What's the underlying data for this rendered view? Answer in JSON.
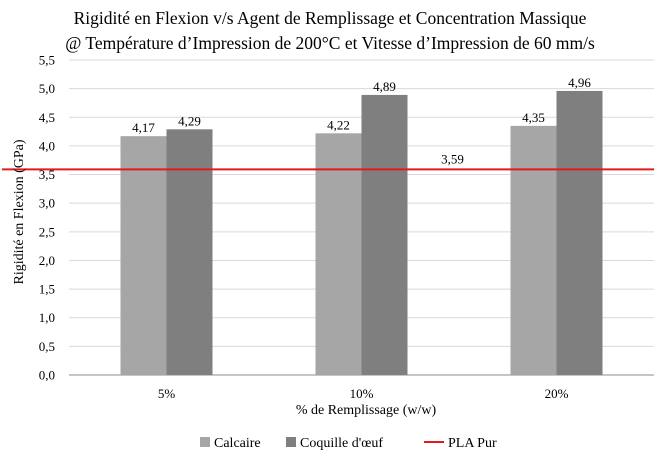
{
  "chart_data": {
    "type": "bar",
    "title_lines": [
      "Rigidité en Flexion v/s Agent de Remplissage et Concentration Massique",
      "@ Température d’Impression de 200°C et Vitesse d’Impression de 60 mm/s"
    ],
    "xlabel": "% de Remplissage (w/w)",
    "ylabel": "Rigidité en Flexion (GPa)",
    "categories": [
      "5%",
      "10%",
      "20%"
    ],
    "ylim": [
      0,
      5.5
    ],
    "ytick_step": 0.5,
    "ytick_labels": [
      "0,0",
      "0,5",
      "1,0",
      "1,5",
      "2,0",
      "2,5",
      "3,0",
      "3,5",
      "4,0",
      "4,5",
      "5,0",
      "5,5"
    ],
    "grid": true,
    "series": [
      {
        "name": "Calcaire",
        "color": "#a6a6a6",
        "values": [
          4.17,
          4.22,
          4.35
        ],
        "labels": [
          "4,17",
          "4,22",
          "4,35"
        ]
      },
      {
        "name": "Coquille d'œuf",
        "color": "#7f7f7f",
        "values": [
          4.29,
          4.89,
          4.96
        ],
        "labels": [
          "4,29",
          "4,89",
          "4,96"
        ]
      }
    ],
    "reference_line": {
      "name": "PLA Pur",
      "color": "#e31a1c",
      "value": 3.59,
      "label": "3,59"
    },
    "legend": {
      "position": "bottom",
      "items": [
        {
          "label": "Calcaire",
          "color": "#a6a6a6",
          "kind": "box"
        },
        {
          "label": "Coquille d'œuf",
          "color": "#7f7f7f",
          "kind": "box"
        },
        {
          "label": "PLA Pur",
          "color": "#e31a1c",
          "kind": "line"
        }
      ]
    }
  }
}
